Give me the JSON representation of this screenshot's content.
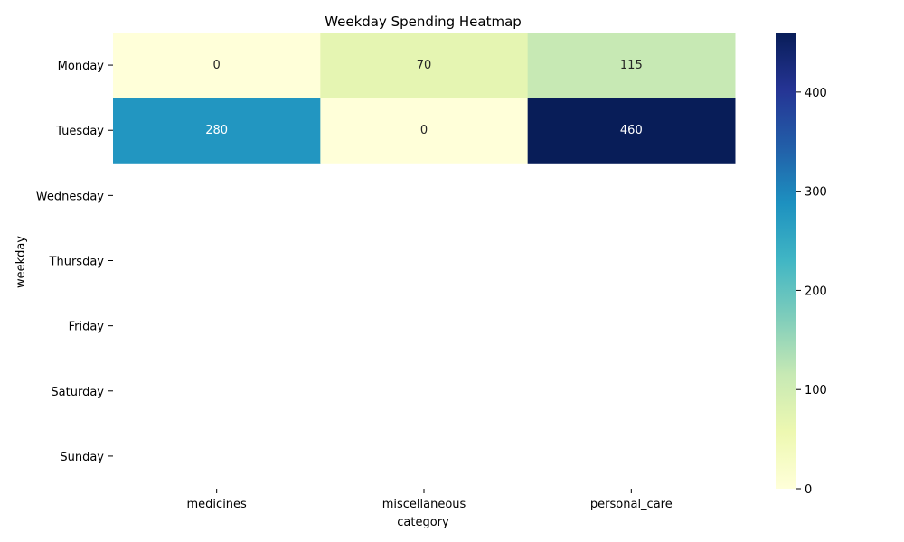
{
  "chart_data": {
    "type": "heatmap",
    "title": "Weekday Spending Heatmap",
    "xlabel": "category",
    "ylabel": "weekday",
    "x_categories": [
      "medicines",
      "miscellaneous",
      "personal_care"
    ],
    "y_categories": [
      "Monday",
      "Tuesday",
      "Wednesday",
      "Thursday",
      "Friday",
      "Saturday",
      "Sunday"
    ],
    "values": [
      [
        0,
        70,
        115
      ],
      [
        280,
        0,
        460
      ],
      [
        null,
        null,
        null
      ],
      [
        null,
        null,
        null
      ],
      [
        null,
        null,
        null
      ],
      [
        null,
        null,
        null
      ],
      [
        null,
        null,
        null
      ]
    ],
    "colormap": "YlGnBu",
    "vmin": 0,
    "vmax": 460,
    "colorbar_ticks": [
      0,
      100,
      200,
      300,
      400
    ]
  }
}
